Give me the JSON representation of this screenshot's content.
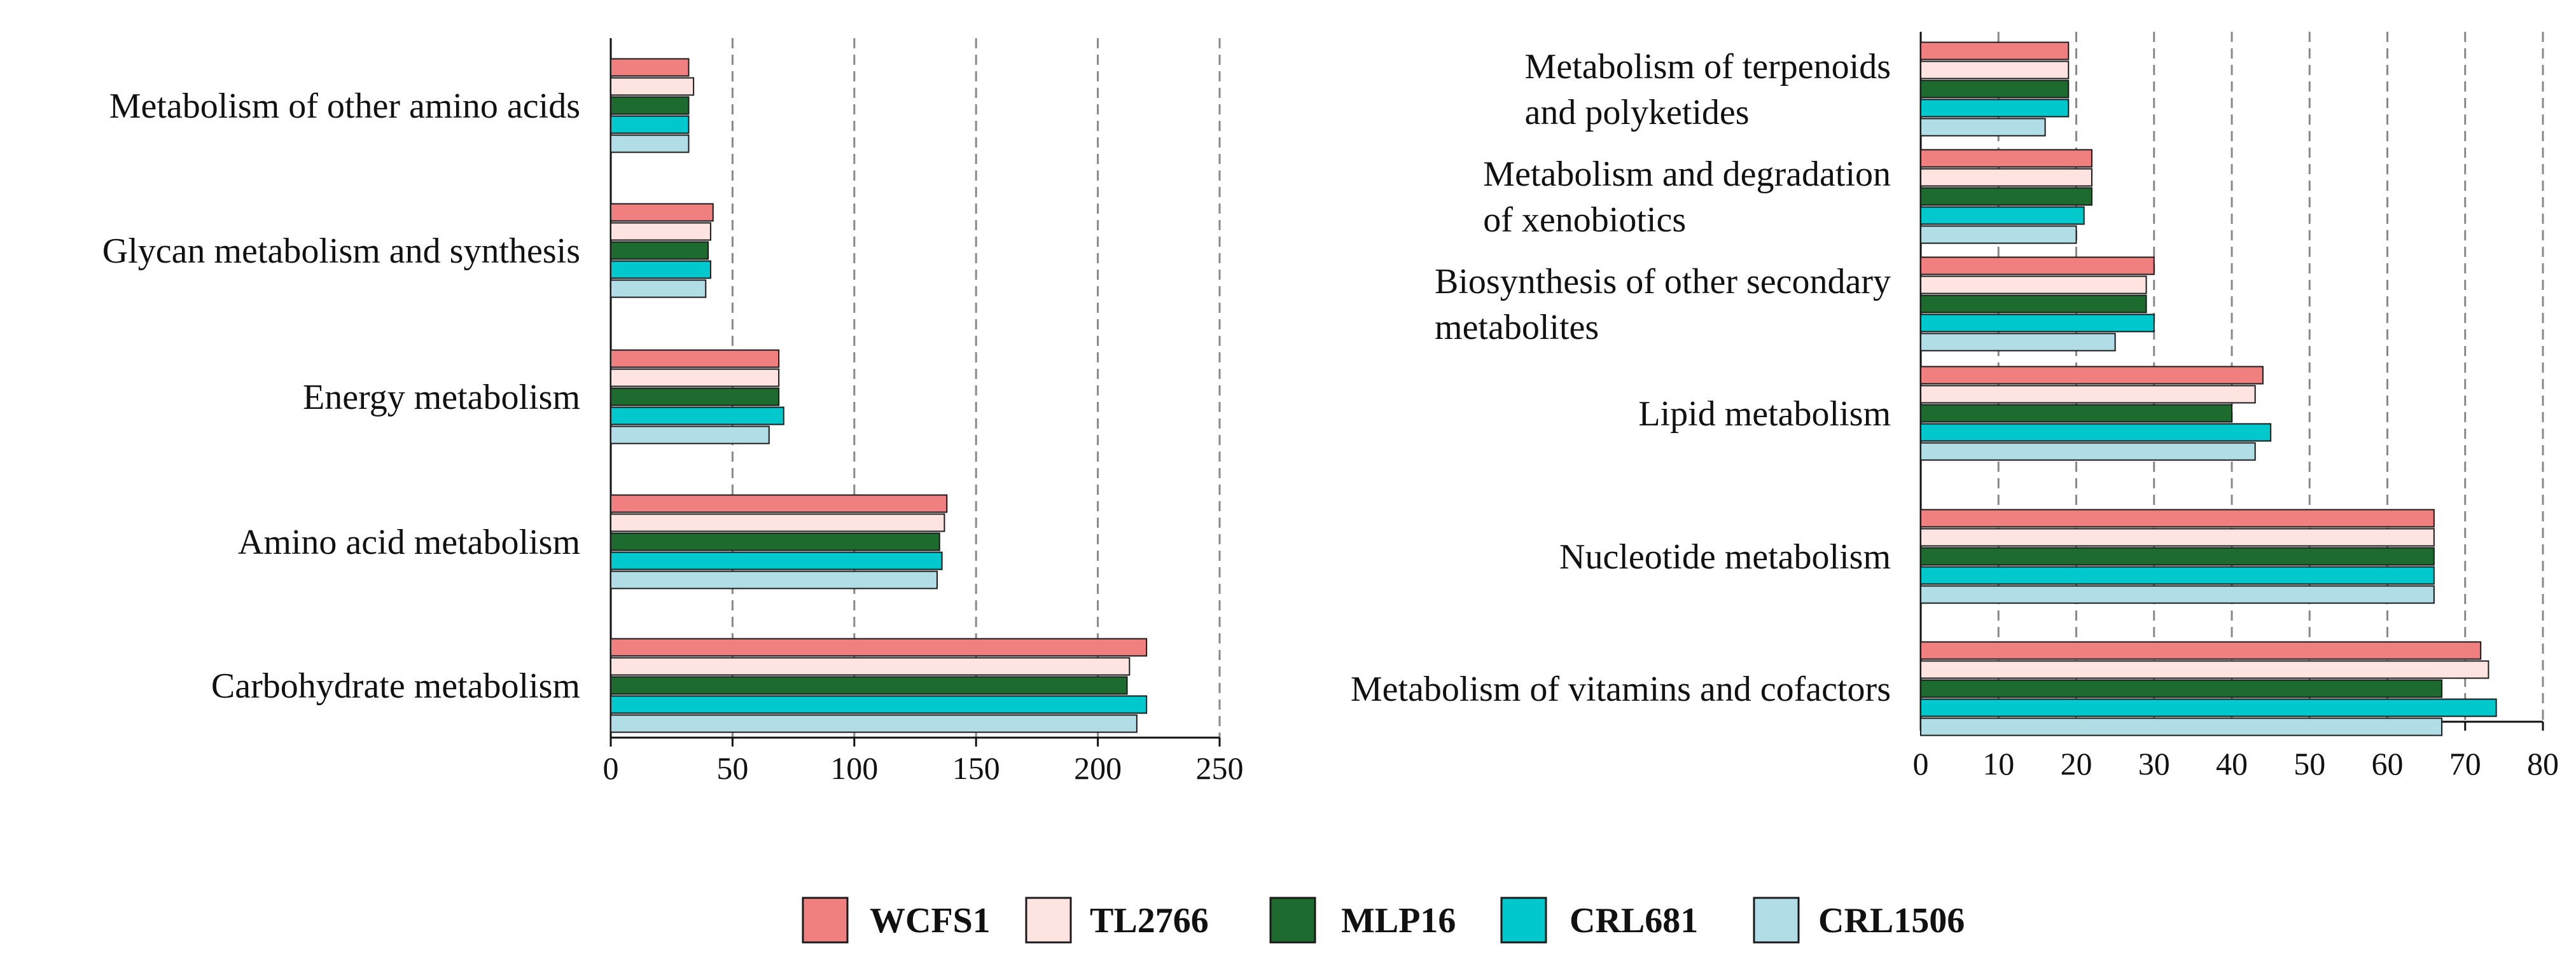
{
  "chart_data": [
    {
      "type": "bar",
      "orientation": "horizontal",
      "title": "",
      "xlabel": "",
      "ylabel": "",
      "xlim": [
        0,
        250
      ],
      "xticks": [
        "0",
        "50",
        "100",
        "150",
        "200",
        "250"
      ],
      "grid": "vertical dashed",
      "categories": [
        [
          "Metabolism of other amino acids"
        ],
        [
          "Glycan metabolism and synthesis"
        ],
        [
          "Energy metabolism"
        ],
        [
          "Amino acid metabolism"
        ],
        [
          "Carbohydrate metabolism"
        ]
      ],
      "series": [
        {
          "name": "WCFS1",
          "values": [
            32,
            42,
            69,
            138,
            220
          ]
        },
        {
          "name": "TL2766",
          "values": [
            34,
            41,
            69,
            137,
            213
          ]
        },
        {
          "name": "MLP16",
          "values": [
            32,
            40,
            69,
            135,
            212
          ]
        },
        {
          "name": "CRL681",
          "values": [
            32,
            41,
            71,
            136,
            220
          ]
        },
        {
          "name": "CRL1506",
          "values": [
            32,
            39,
            65,
            134,
            216
          ]
        }
      ]
    },
    {
      "type": "bar",
      "orientation": "horizontal",
      "title": "",
      "xlabel": "",
      "ylabel": "",
      "xlim": [
        0,
        80
      ],
      "xticks": [
        "0",
        "10",
        "20",
        "30",
        "40",
        "50",
        "60",
        "70",
        "80"
      ],
      "grid": "vertical dashed",
      "categories": [
        [
          "Metabolism of terpenoids",
          "and polyketides"
        ],
        [
          "Metabolism and degradation",
          "of xenobiotics"
        ],
        [
          "Biosynthesis of other secondary",
          "metabolites"
        ],
        [
          "Lipid metabolism"
        ],
        [
          "Nucleotide metabolism"
        ],
        [
          "Metabolism of vitamins and cofactors"
        ]
      ],
      "series": [
        {
          "name": "WCFS1",
          "values": [
            19,
            22,
            30,
            44,
            66,
            72
          ]
        },
        {
          "name": "TL2766",
          "values": [
            19,
            22,
            29,
            43,
            66,
            73
          ]
        },
        {
          "name": "MLP16",
          "values": [
            19,
            22,
            29,
            40,
            66,
            67
          ]
        },
        {
          "name": "CRL681",
          "values": [
            19,
            21,
            30,
            45,
            66,
            74
          ]
        },
        {
          "name": "CRL1506",
          "values": [
            16,
            20,
            25,
            43,
            66,
            67
          ]
        }
      ]
    }
  ],
  "legend": {
    "placement": "bottom",
    "items": [
      {
        "label": "WCFS1",
        "color": "#f08080"
      },
      {
        "label": "TL2766",
        "color": "#fde4e0"
      },
      {
        "label": "MLP16",
        "color": "#1e6b2f"
      },
      {
        "label": "CRL681",
        "color": "#00c8cc"
      },
      {
        "label": "CRL1506",
        "color": "#b0dde6"
      }
    ]
  }
}
